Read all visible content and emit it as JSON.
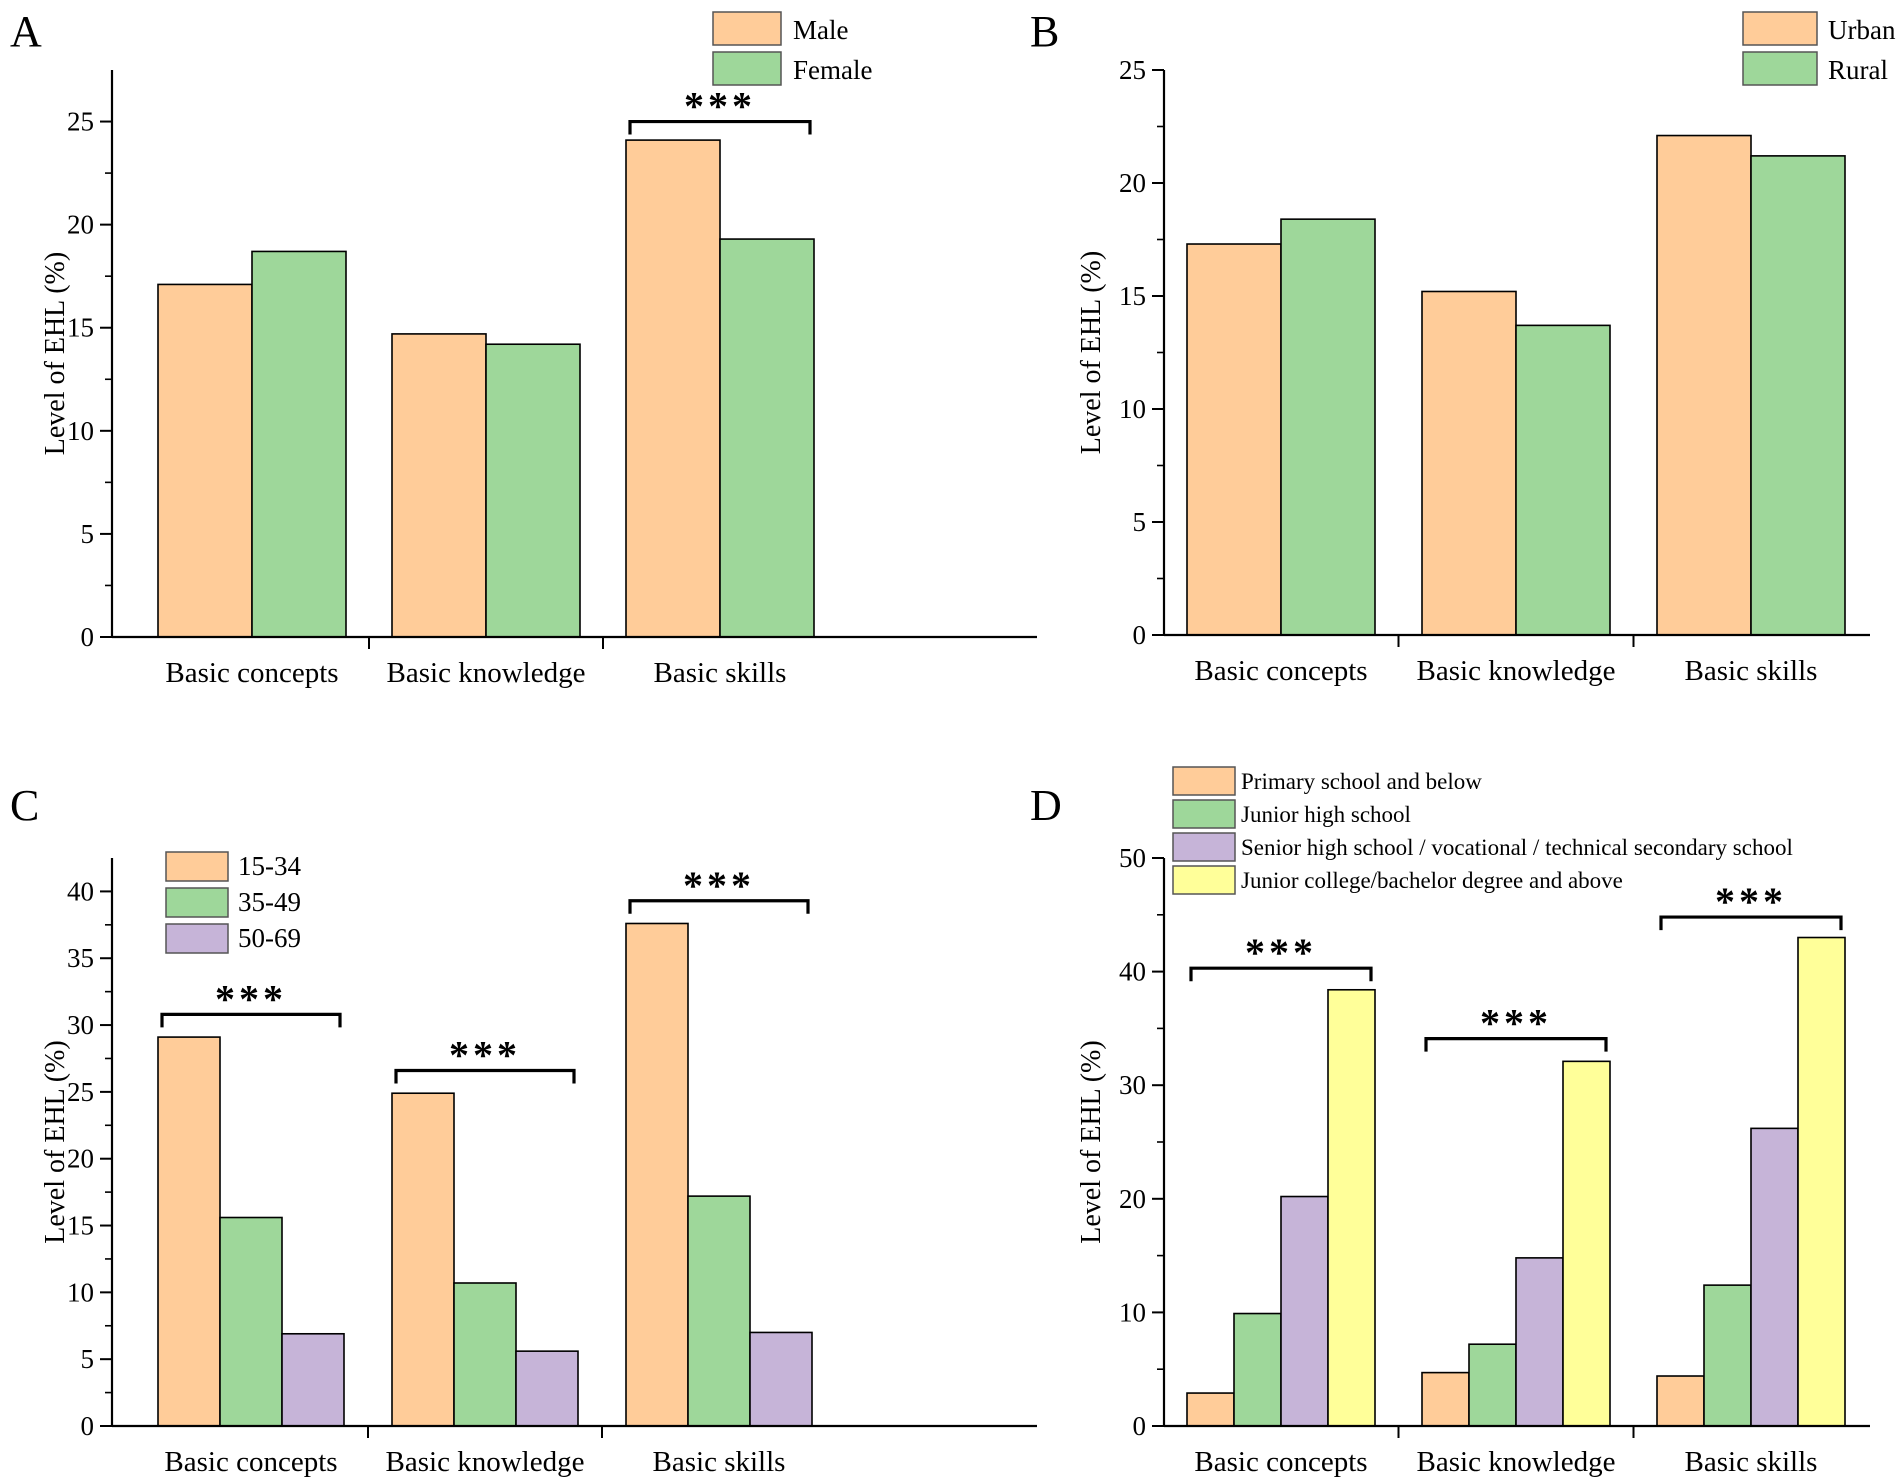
{
  "figure": {
    "colors": {
      "orange": "#FFCC99",
      "green": "#9ED79A",
      "purple": "#C6B4D8",
      "yellow": "#FFFF99",
      "axis": "#000000"
    },
    "chart_data": [
      {
        "panel": "A",
        "type": "bar",
        "ylabel": "Level of EHL (%)",
        "xlabel": "",
        "ylim": [
          0,
          27.5
        ],
        "yticks": [
          0,
          5,
          10,
          15,
          20,
          25
        ],
        "categories": [
          "Basic concepts",
          "Basic knowledge",
          "Basic skills"
        ],
        "series": [
          {
            "name": "Male",
            "color": "#FFCC99",
            "values": [
              17.1,
              14.7,
              24.1
            ]
          },
          {
            "name": "Female",
            "color": "#9ED79A",
            "values": [
              18.7,
              14.2,
              19.3
            ]
          }
        ],
        "legend_position": "top-right",
        "significance": [
          {
            "category": "Basic skills",
            "label": "***",
            "y": 25.0
          }
        ]
      },
      {
        "panel": "B",
        "type": "bar",
        "ylabel": "Level of EHL (%)",
        "xlabel": "",
        "ylim": [
          0,
          25
        ],
        "yticks": [
          0,
          5,
          10,
          15,
          20,
          25
        ],
        "categories": [
          "Basic concepts",
          "Basic knowledge",
          "Basic skills"
        ],
        "series": [
          {
            "name": "Urban",
            "color": "#FFCC99",
            "values": [
              17.3,
              15.2,
              22.1
            ]
          },
          {
            "name": "Rural",
            "color": "#9ED79A",
            "values": [
              18.4,
              13.7,
              21.2
            ]
          }
        ],
        "legend_position": "top-right",
        "significance": []
      },
      {
        "panel": "C",
        "type": "bar",
        "ylabel": "Level of EHL (%)",
        "xlabel": "",
        "ylim": [
          0,
          42.5
        ],
        "yticks": [
          0,
          5,
          10,
          15,
          20,
          25,
          30,
          35,
          40
        ],
        "categories": [
          "Basic concepts",
          "Basic knowledge",
          "Basic skills"
        ],
        "series": [
          {
            "name": "15-34",
            "color": "#FFCC99",
            "values": [
              29.1,
              24.9,
              37.6
            ]
          },
          {
            "name": "35-49",
            "color": "#9ED79A",
            "values": [
              15.6,
              10.7,
              17.2
            ]
          },
          {
            "name": "50-69",
            "color": "#C6B4D8",
            "values": [
              6.9,
              5.6,
              7.0
            ]
          }
        ],
        "legend_position": "top-left",
        "significance": [
          {
            "category": "Basic concepts",
            "label": "***",
            "y": 30.8
          },
          {
            "category": "Basic knowledge",
            "label": "***",
            "y": 26.6
          },
          {
            "category": "Basic skills",
            "label": "***",
            "y": 39.3
          }
        ]
      },
      {
        "panel": "D",
        "type": "bar",
        "ylabel": "Level of EHL (%)",
        "xlabel": "",
        "ylim": [
          0,
          50
        ],
        "yticks": [
          0,
          10,
          20,
          30,
          40,
          50
        ],
        "categories": [
          "Basic concepts",
          "Basic knowledge",
          "Basic skills"
        ],
        "series": [
          {
            "name": "Primary school and below",
            "color": "#FFCC99",
            "values": [
              2.9,
              4.7,
              4.4
            ]
          },
          {
            "name": "Junior high school",
            "color": "#9ED79A",
            "values": [
              9.9,
              7.2,
              12.4
            ]
          },
          {
            "name": "Senior high school / vocational / technical secondary school",
            "color": "#C6B4D8",
            "values": [
              20.2,
              14.8,
              26.2
            ]
          },
          {
            "name": "Junior college/bachelor degree and above",
            "color": "#FFFF99",
            "values": [
              38.4,
              32.1,
              43.0
            ]
          }
        ],
        "legend_position": "top",
        "significance": [
          {
            "category": "Basic concepts",
            "label": "***",
            "y": 40.3
          },
          {
            "category": "Basic knowledge",
            "label": "***",
            "y": 34.1
          },
          {
            "category": "Basic skills",
            "label": "***",
            "y": 44.8
          }
        ]
      }
    ]
  }
}
